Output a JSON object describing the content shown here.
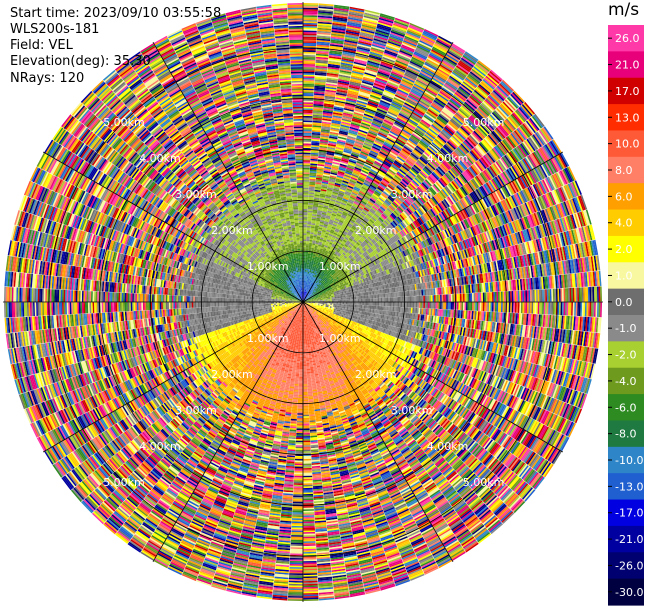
{
  "header": {
    "start_time": "Start time: 2023/09/10 03:55:58",
    "instrument": "WLS200s-181",
    "field": "Field: VEL",
    "elevation": "Elevation(deg): 35.30",
    "nrays": "NRays: 120"
  },
  "chart_data": {
    "type": "heatmap",
    "projection": "polar-ppi",
    "field": "VEL",
    "units": "m/s",
    "nrays": 120,
    "elevation_deg": 35.3,
    "range_rings_km": [
      1.0,
      2.0,
      3.0,
      4.0,
      5.0
    ],
    "range_ring_labels": [
      "1.00km",
      "2.00km",
      "3.00km",
      "4.00km",
      "5.00km"
    ],
    "max_range_km": 5.9,
    "grid": true,
    "colorbar": {
      "title": "m/s",
      "ticks": [
        "26.0",
        "21.0",
        "17.0",
        "13.0",
        "10.0",
        "8.0",
        "6.0",
        "4.0",
        "2.0",
        "1.0",
        "0.0",
        "-1.0",
        "-2.0",
        "-4.0",
        "-6.0",
        "-8.0",
        "-10.0",
        "-13.0",
        "-17.0",
        "-21.0",
        "-26.0",
        "-30.0"
      ],
      "colors": [
        "#ff3aa8",
        "#e8007a",
        "#d10000",
        "#ff2d00",
        "#ff5a38",
        "#ff7f66",
        "#ff9f00",
        "#ffcc00",
        "#ffff00",
        "#f8f8a0",
        "#6e6e6e",
        "#8a8a8a",
        "#a8d030",
        "#6e9a1e",
        "#2e8b22",
        "#1e7a40",
        "#2e86c8",
        "#1f5fd0",
        "#0000e0",
        "#0000a0",
        "#000070",
        "#000040"
      ]
    },
    "structure": {
      "coherent_range_km": 2.4,
      "toward_sector": "north",
      "away_sector": "south",
      "toward_peak": -17.0,
      "away_peak": 13.0
    }
  }
}
